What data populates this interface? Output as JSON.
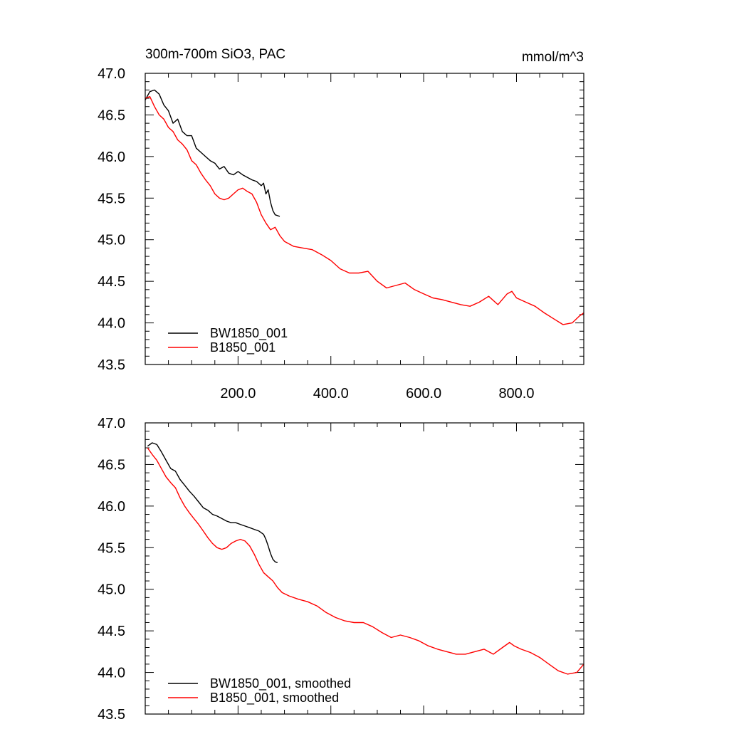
{
  "title": "300m-700m SiO3, PAC",
  "units": "mmol/m^3",
  "colors": {
    "bw": "#000000",
    "b": "#ff0000",
    "axis": "#000000",
    "background": "#ffffff"
  },
  "chart_data": [
    {
      "type": "line",
      "title": "300m-700m SiO3, PAC",
      "units": "mmol/m^3",
      "xlim": [
        0,
        945
      ],
      "ylim": [
        43.5,
        47.0
      ],
      "x_ticks": [
        200,
        400,
        600,
        800
      ],
      "x_tick_labels": [
        "200.0",
        "400.0",
        "600.0",
        "800.0"
      ],
      "y_ticks": [
        43.5,
        44.0,
        44.5,
        45.0,
        45.5,
        46.0,
        46.5,
        47.0
      ],
      "y_tick_labels": [
        "43.5",
        "44.0",
        "44.5",
        "45.0",
        "45.5",
        "46.0",
        "46.5",
        "47.0"
      ],
      "legend_position": "bottom-left",
      "series": [
        {
          "name": "BW1850_001",
          "color": "#000000",
          "x": [
            0,
            10,
            20,
            30,
            40,
            50,
            60,
            70,
            80,
            90,
            100,
            110,
            120,
            130,
            140,
            150,
            160,
            170,
            180,
            190,
            200,
            210,
            220,
            230,
            240,
            250,
            255,
            260,
            265,
            270,
            275,
            280,
            290
          ],
          "y": [
            46.68,
            46.78,
            46.8,
            46.75,
            46.62,
            46.55,
            46.4,
            46.45,
            46.3,
            46.25,
            46.25,
            46.1,
            46.05,
            46.0,
            45.95,
            45.92,
            45.85,
            45.88,
            45.8,
            45.78,
            45.82,
            45.78,
            45.75,
            45.72,
            45.7,
            45.65,
            45.68,
            45.55,
            45.6,
            45.45,
            45.35,
            45.3,
            45.28
          ]
        },
        {
          "name": "B1850_001",
          "color": "#ff0000",
          "x": [
            0,
            10,
            20,
            30,
            40,
            50,
            60,
            70,
            80,
            90,
            100,
            110,
            120,
            130,
            140,
            150,
            160,
            170,
            180,
            190,
            200,
            210,
            220,
            230,
            240,
            250,
            260,
            270,
            280,
            290,
            300,
            320,
            340,
            360,
            380,
            400,
            420,
            440,
            460,
            480,
            500,
            520,
            540,
            560,
            580,
            600,
            620,
            640,
            660,
            680,
            700,
            720,
            740,
            760,
            780,
            790,
            800,
            820,
            840,
            860,
            880,
            900,
            920,
            935,
            945
          ],
          "y": [
            46.7,
            46.72,
            46.6,
            46.5,
            46.45,
            46.35,
            46.3,
            46.2,
            46.15,
            46.08,
            45.95,
            45.9,
            45.8,
            45.72,
            45.65,
            45.55,
            45.5,
            45.48,
            45.5,
            45.55,
            45.6,
            45.62,
            45.58,
            45.55,
            45.45,
            45.3,
            45.2,
            45.12,
            45.15,
            45.05,
            44.98,
            44.92,
            44.9,
            44.88,
            44.82,
            44.75,
            44.65,
            44.6,
            44.6,
            44.62,
            44.5,
            44.42,
            44.45,
            44.48,
            44.4,
            44.35,
            44.3,
            44.28,
            44.25,
            44.22,
            44.2,
            44.25,
            44.32,
            44.22,
            44.35,
            44.38,
            44.3,
            44.25,
            44.2,
            44.12,
            44.05,
            43.98,
            44.0,
            44.08,
            44.12
          ]
        }
      ]
    },
    {
      "type": "line",
      "title": "",
      "xlim": [
        0,
        945
      ],
      "ylim": [
        43.5,
        47.0
      ],
      "x_ticks": [
        200,
        400,
        600,
        800
      ],
      "x_tick_labels": [],
      "y_ticks": [
        43.5,
        44.0,
        44.5,
        45.0,
        45.5,
        46.0,
        46.5,
        47.0
      ],
      "y_tick_labels": [
        "43.5",
        "44.0",
        "44.5",
        "45.0",
        "45.5",
        "46.0",
        "46.5",
        "47.0"
      ],
      "legend_position": "bottom-left",
      "series": [
        {
          "name": "BW1850_001, smoothed",
          "color": "#000000",
          "x": [
            5,
            15,
            25,
            35,
            45,
            55,
            65,
            75,
            85,
            95,
            105,
            115,
            125,
            135,
            145,
            155,
            165,
            175,
            185,
            195,
            205,
            215,
            225,
            235,
            245,
            255,
            260,
            265,
            270,
            275,
            280,
            285
          ],
          "y": [
            46.72,
            46.76,
            46.74,
            46.65,
            46.55,
            46.45,
            46.42,
            46.32,
            46.25,
            46.18,
            46.12,
            46.05,
            45.98,
            45.95,
            45.9,
            45.88,
            45.85,
            45.82,
            45.8,
            45.8,
            45.78,
            45.76,
            45.74,
            45.72,
            45.7,
            45.66,
            45.6,
            45.52,
            45.43,
            45.36,
            45.33,
            45.32
          ]
        },
        {
          "name": "B1850_001, smoothed",
          "color": "#ff0000",
          "x": [
            5,
            15,
            25,
            35,
            45,
            55,
            65,
            75,
            85,
            95,
            105,
            115,
            125,
            135,
            145,
            155,
            165,
            175,
            185,
            195,
            205,
            215,
            225,
            235,
            245,
            255,
            265,
            275,
            285,
            295,
            310,
            330,
            350,
            370,
            390,
            410,
            430,
            450,
            470,
            490,
            510,
            530,
            550,
            570,
            590,
            610,
            630,
            650,
            670,
            690,
            710,
            730,
            750,
            770,
            785,
            795,
            810,
            830,
            850,
            870,
            890,
            910,
            930,
            945
          ],
          "y": [
            46.7,
            46.62,
            46.55,
            46.45,
            46.35,
            46.28,
            46.22,
            46.1,
            46.0,
            45.92,
            45.85,
            45.78,
            45.7,
            45.62,
            45.55,
            45.5,
            45.48,
            45.5,
            45.55,
            45.58,
            45.6,
            45.58,
            45.52,
            45.42,
            45.3,
            45.2,
            45.15,
            45.1,
            45.02,
            44.96,
            44.92,
            44.88,
            44.85,
            44.8,
            44.72,
            44.66,
            44.62,
            44.6,
            44.6,
            44.55,
            44.48,
            44.42,
            44.45,
            44.42,
            44.38,
            44.32,
            44.28,
            44.25,
            44.22,
            44.22,
            44.25,
            44.28,
            44.22,
            44.3,
            44.36,
            44.32,
            44.28,
            44.24,
            44.18,
            44.1,
            44.02,
            43.98,
            44.0,
            44.1
          ]
        }
      ]
    }
  ]
}
